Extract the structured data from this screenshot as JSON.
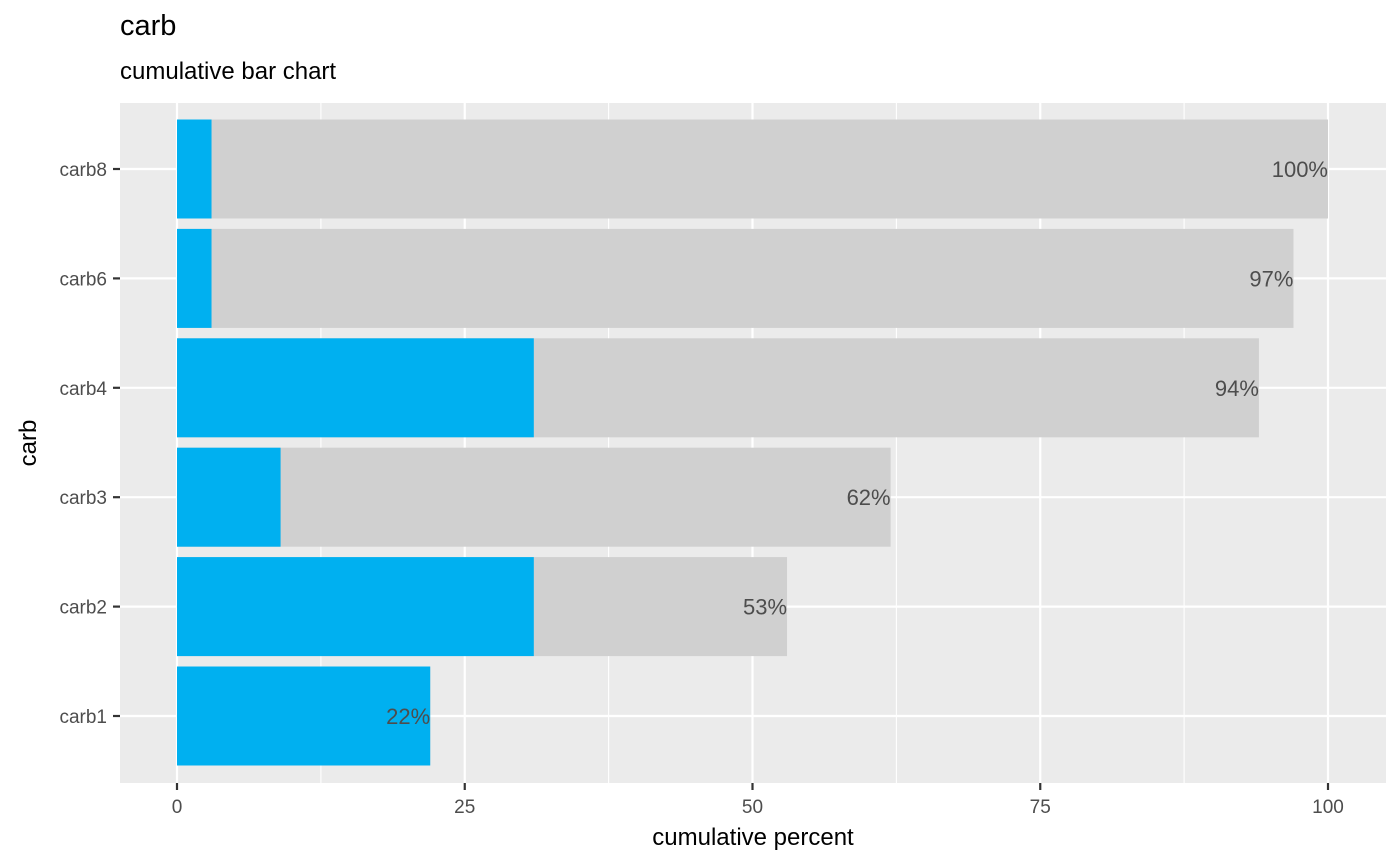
{
  "chart_data": {
    "type": "bar",
    "orientation": "horizontal",
    "title": "carb",
    "subtitle": "cumulative bar chart",
    "xlabel": "cumulative percent",
    "ylabel": "carb",
    "categories": [
      "carb1",
      "carb2",
      "carb3",
      "carb4",
      "carb6",
      "carb8"
    ],
    "series": [
      {
        "values": [
          22,
          53,
          62,
          94,
          97,
          100
        ],
        "color": "#d0d0d0"
      },
      {
        "values": [
          22,
          31,
          9,
          31,
          3,
          3
        ],
        "color": "#00b0f0"
      }
    ],
    "data_labels": [
      "22%",
      "53%",
      "62%",
      "94%",
      "97%",
      "100%"
    ],
    "xlim": [
      0,
      100
    ],
    "x_ticks": [
      0,
      25,
      50,
      75,
      100
    ],
    "grid": true,
    "panel_background": "#ebebeb",
    "grid_color": "#ffffff"
  }
}
